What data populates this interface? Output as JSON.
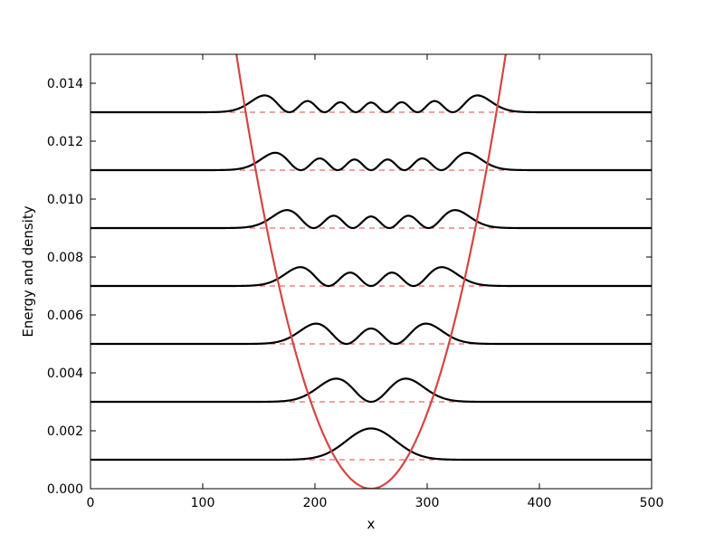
{
  "chart_data": {
    "type": "line",
    "title": "",
    "xlabel": "x",
    "ylabel": "Energy and density",
    "xlim": [
      0,
      500
    ],
    "ylim": [
      0,
      0.015
    ],
    "x_ticks": [
      "0",
      "100",
      "200",
      "300",
      "400",
      "500"
    ],
    "y_ticks": [
      "0.000",
      "0.002",
      "0.004",
      "0.006",
      "0.008",
      "0.010",
      "0.012",
      "0.014"
    ],
    "grid": false,
    "legend": "none",
    "potential": {
      "shape": "harmonic",
      "center": 250,
      "value_at_x": [
        [
          130,
          0.015
        ],
        [
          250,
          0.0
        ],
        [
          370,
          0.015
        ]
      ]
    },
    "energy_levels": [
      0.001,
      0.003,
      0.005,
      0.007,
      0.009,
      0.011,
      0.013
    ],
    "density_curves": [
      {
        "n": 0,
        "baseline": 0.001,
        "peak_height": 0.00108,
        "peaks": 1
      },
      {
        "n": 1,
        "baseline": 0.003,
        "peak_height": 0.0008,
        "peaks": 2
      },
      {
        "n": 2,
        "baseline": 0.005,
        "peak_height": 0.0007,
        "peaks": 3
      },
      {
        "n": 3,
        "baseline": 0.007,
        "peak_height": 0.00065,
        "peaks": 4
      },
      {
        "n": 4,
        "baseline": 0.009,
        "peak_height": 0.00062,
        "peaks": 5
      },
      {
        "n": 5,
        "baseline": 0.011,
        "peak_height": 0.0006,
        "peaks": 6
      },
      {
        "n": 6,
        "baseline": 0.013,
        "peak_height": 0.00058,
        "peaks": 7
      }
    ],
    "colors": {
      "potential": "#d64541",
      "levels": "#e0443e",
      "density": "#000000"
    }
  }
}
